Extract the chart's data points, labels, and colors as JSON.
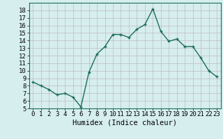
{
  "x": [
    0,
    1,
    2,
    3,
    4,
    5,
    6,
    7,
    8,
    9,
    10,
    11,
    12,
    13,
    14,
    15,
    16,
    17,
    18,
    19,
    20,
    21,
    22,
    23
  ],
  "y": [
    8.5,
    8.0,
    7.5,
    6.8,
    7.0,
    6.5,
    5.2,
    9.8,
    12.2,
    13.2,
    14.8,
    14.8,
    14.4,
    15.5,
    16.1,
    18.2,
    15.2,
    13.9,
    14.2,
    13.2,
    13.2,
    11.7,
    10.0,
    9.2
  ],
  "line_color": "#1a6b5e",
  "marker": "+",
  "marker_color": "#1a6b5e",
  "bg_color": "#d6eeee",
  "grid_color": "#b0cecece",
  "xlabel": "Humidex (Indice chaleur)",
  "ylim": [
    5,
    19
  ],
  "xlim": [
    -0.5,
    23.5
  ],
  "yticks": [
    5,
    6,
    7,
    8,
    9,
    10,
    11,
    12,
    13,
    14,
    15,
    16,
    17,
    18
  ],
  "xticks": [
    0,
    1,
    2,
    3,
    4,
    5,
    6,
    7,
    8,
    9,
    10,
    11,
    12,
    13,
    14,
    15,
    16,
    17,
    18,
    19,
    20,
    21,
    22,
    23
  ],
  "tick_fontsize": 6.5,
  "xlabel_fontsize": 7.5,
  "line_width": 1.0,
  "marker_size": 3.5
}
